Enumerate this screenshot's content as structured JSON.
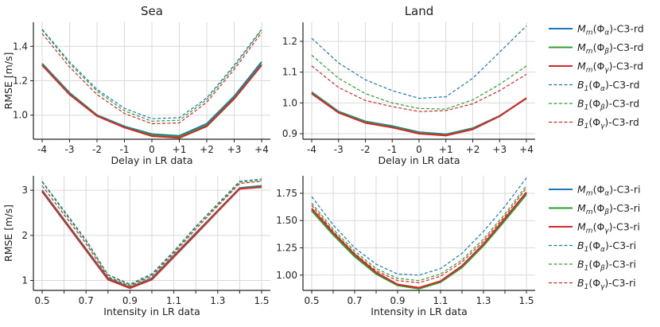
{
  "chart_data": [
    {
      "type": "line",
      "title": "Sea",
      "xlabel": "Delay in LR data",
      "ylabel": "RMSE [m/s]",
      "categories": [
        "-4",
        "-3",
        "-2",
        "-1",
        "0",
        "+1",
        "+2",
        "+3",
        "+4"
      ],
      "ylim": [
        0.86,
        1.54
      ],
      "yticks": [
        1.0,
        1.2,
        1.4
      ],
      "ytick_labels": [
        "1.0",
        "1.2",
        "1.4"
      ],
      "series": [
        {
          "name": "Mm(Φα)-C3-rd",
          "color": "#1f77b4",
          "dash": false,
          "values": [
            1.3,
            1.13,
            1.0,
            0.935,
            0.89,
            0.88,
            0.95,
            1.11,
            1.31
          ]
        },
        {
          "name": "Mm(Φβ)-C3-rd",
          "color": "#2ca02c",
          "dash": false,
          "values": [
            1.295,
            1.125,
            0.998,
            0.93,
            0.885,
            0.875,
            0.94,
            1.1,
            1.295
          ]
        },
        {
          "name": "Mm(Φγ)-C3-rd",
          "color": "#d62728",
          "dash": false,
          "values": [
            1.29,
            1.12,
            0.995,
            0.928,
            0.878,
            0.868,
            0.935,
            1.095,
            1.29
          ]
        },
        {
          "name": "B1(Φα)-C3-rd",
          "color": "#1f77b4",
          "dash": true,
          "values": [
            1.5,
            1.31,
            1.15,
            1.04,
            0.98,
            0.985,
            1.1,
            1.29,
            1.5
          ]
        },
        {
          "name": "B1(Φβ)-C3-rd",
          "color": "#2ca02c",
          "dash": true,
          "values": [
            1.495,
            1.3,
            1.14,
            1.025,
            0.965,
            0.97,
            1.09,
            1.28,
            1.495
          ]
        },
        {
          "name": "B1(Φγ)-C3-rd",
          "color": "#d62728",
          "dash": true,
          "values": [
            1.475,
            1.28,
            1.12,
            1.01,
            0.95,
            0.955,
            1.075,
            1.265,
            1.48
          ]
        }
      ]
    },
    {
      "type": "line",
      "title": "Land",
      "xlabel": "Delay in LR data",
      "ylabel": "",
      "categories": [
        "-4",
        "-3",
        "-2",
        "-1",
        "0",
        "+1",
        "+2",
        "+3",
        "+4"
      ],
      "ylim": [
        0.882,
        1.262
      ],
      "yticks": [
        0.9,
        1.0,
        1.1,
        1.2
      ],
      "ytick_labels": [
        "0.9",
        "1.0",
        "1.1",
        "1.2"
      ],
      "series": [
        {
          "name": "Mm(Φα)-C3-rd",
          "color": "#1f77b4",
          "dash": false,
          "values": [
            1.035,
            0.972,
            0.94,
            0.925,
            0.905,
            0.898,
            0.918,
            0.958,
            1.015
          ]
        },
        {
          "name": "Mm(Φβ)-C3-rd",
          "color": "#2ca02c",
          "dash": false,
          "values": [
            1.033,
            0.97,
            0.938,
            0.922,
            0.903,
            0.896,
            0.916,
            0.957,
            1.015
          ]
        },
        {
          "name": "Mm(Φγ)-C3-rd",
          "color": "#d62728",
          "dash": false,
          "values": [
            1.03,
            0.968,
            0.935,
            0.92,
            0.9,
            0.894,
            0.914,
            0.957,
            1.016
          ]
        },
        {
          "name": "B1(Φα)-C3-rd",
          "color": "#1f77b4",
          "dash": true,
          "values": [
            1.21,
            1.13,
            1.075,
            1.04,
            1.015,
            1.02,
            1.08,
            1.165,
            1.25
          ]
        },
        {
          "name": "B1(Φβ)-C3-rd",
          "color": "#2ca02c",
          "dash": true,
          "values": [
            1.155,
            1.08,
            1.03,
            1.0,
            0.982,
            0.98,
            1.01,
            1.06,
            1.12
          ]
        },
        {
          "name": "B1(Φγ)-C3-rd",
          "color": "#d62728",
          "dash": true,
          "values": [
            1.12,
            1.05,
            1.008,
            0.988,
            0.972,
            0.975,
            0.997,
            1.04,
            1.093
          ]
        }
      ]
    },
    {
      "type": "line",
      "title": "",
      "xlabel": "Intensity in LR data",
      "ylabel": "RMSE [m/s]",
      "categories": [
        "0.5",
        "0.6",
        "0.7",
        "0.8",
        "0.9",
        "1.0",
        "1.1",
        "1.2",
        "1.3",
        "1.4",
        "1.5"
      ],
      "xtick_labels": [
        "0.5",
        "",
        "0.7",
        "",
        "0.9",
        "",
        "1.1",
        "",
        "1.3",
        "",
        "1.5"
      ],
      "ylim": [
        0.78,
        3.32
      ],
      "yticks": [
        1,
        2,
        3
      ],
      "ytick_labels": [
        "1",
        "2",
        "3"
      ],
      "series": [
        {
          "name": "Mm(Φα)-C3-ri",
          "color": "#1f77b4",
          "dash": false,
          "values": [
            3.0,
            2.35,
            1.7,
            1.05,
            0.85,
            1.05,
            1.55,
            2.05,
            2.55,
            3.05,
            3.1
          ]
        },
        {
          "name": "Mm(Φβ)-C3-ri",
          "color": "#2ca02c",
          "dash": false,
          "values": [
            2.98,
            2.33,
            1.68,
            1.03,
            0.84,
            1.03,
            1.53,
            2.03,
            2.54,
            3.04,
            3.08
          ]
        },
        {
          "name": "Mm(Φγ)-C3-ri",
          "color": "#d62728",
          "dash": false,
          "values": [
            2.97,
            2.32,
            1.67,
            1.02,
            0.83,
            1.02,
            1.52,
            2.02,
            2.53,
            3.03,
            3.07
          ]
        },
        {
          "name": "B1(Φα)-C3-ri",
          "color": "#1f77b4",
          "dash": true,
          "values": [
            3.2,
            2.55,
            1.9,
            1.13,
            0.92,
            1.15,
            1.65,
            2.2,
            2.7,
            3.2,
            3.25
          ]
        },
        {
          "name": "B1(Φβ)-C3-ri",
          "color": "#2ca02c",
          "dash": true,
          "values": [
            3.18,
            2.52,
            1.87,
            1.12,
            0.9,
            1.13,
            1.63,
            2.18,
            2.68,
            3.18,
            3.22
          ]
        },
        {
          "name": "B1(Φγ)-C3-ri",
          "color": "#d62728",
          "dash": true,
          "values": [
            3.1,
            2.46,
            1.82,
            1.08,
            0.88,
            1.1,
            1.6,
            2.14,
            2.65,
            3.15,
            3.2
          ]
        }
      ]
    },
    {
      "type": "line",
      "title": "",
      "xlabel": "Intensity in LR data",
      "ylabel": "",
      "categories": [
        "0.5",
        "0.6",
        "0.7",
        "0.8",
        "0.9",
        "1.0",
        "1.1",
        "1.2",
        "1.3",
        "1.4",
        "1.5"
      ],
      "xtick_labels": [
        "0.5",
        "",
        "0.7",
        "",
        "0.9",
        "",
        "1.1",
        "",
        "1.3",
        "",
        "1.5"
      ],
      "ylim": [
        0.86,
        1.91
      ],
      "yticks": [
        1.0,
        1.25,
        1.5,
        1.75
      ],
      "ytick_labels": [
        "1.00",
        "1.25",
        "1.50",
        "1.75"
      ],
      "series": [
        {
          "name": "Mm(Φα)-C3-ri",
          "color": "#1f77b4",
          "dash": false,
          "values": [
            1.6,
            1.38,
            1.18,
            1.02,
            0.91,
            0.88,
            0.94,
            1.08,
            1.28,
            1.51,
            1.75
          ]
        },
        {
          "name": "Mm(Φβ)-C3-ri",
          "color": "#2ca02c",
          "dash": false,
          "values": [
            1.59,
            1.37,
            1.17,
            1.01,
            0.905,
            0.875,
            0.935,
            1.07,
            1.27,
            1.5,
            1.74
          ]
        },
        {
          "name": "Mm(Φγ)-C3-ri",
          "color": "#d62728",
          "dash": false,
          "values": [
            1.61,
            1.39,
            1.19,
            1.025,
            0.915,
            0.885,
            0.945,
            1.085,
            1.285,
            1.52,
            1.76
          ]
        },
        {
          "name": "B1(Φα)-C3-ri",
          "color": "#1f77b4",
          "dash": true,
          "values": [
            1.72,
            1.46,
            1.25,
            1.1,
            1.01,
            1.0,
            1.06,
            1.2,
            1.4,
            1.63,
            1.89
          ]
        },
        {
          "name": "B1(Φβ)-C3-ri",
          "color": "#2ca02c",
          "dash": true,
          "values": [
            1.66,
            1.42,
            1.22,
            1.06,
            0.97,
            0.95,
            1.01,
            1.14,
            1.33,
            1.56,
            1.82
          ]
        },
        {
          "name": "B1(Φγ)-C3-ri",
          "color": "#d62728",
          "dash": true,
          "values": [
            1.64,
            1.4,
            1.2,
            1.04,
            0.95,
            0.93,
            0.99,
            1.12,
            1.31,
            1.54,
            1.8
          ]
        }
      ]
    }
  ],
  "legends": [
    {
      "entries": [
        {
          "base": "M",
          "sub": "m",
          "phi": "α",
          "suffix": ")-C3-rd",
          "color": "#1f77b4",
          "dash": false
        },
        {
          "base": "M",
          "sub": "m",
          "phi": "β",
          "suffix": ")-C3-rd",
          "color": "#2ca02c",
          "dash": false
        },
        {
          "base": "M",
          "sub": "m",
          "phi": "γ",
          "suffix": ")-C3-rd",
          "color": "#d62728",
          "dash": false
        },
        {
          "base": "B",
          "sub": "1",
          "phi": "α",
          "suffix": ")-C3-rd",
          "color": "#1f77b4",
          "dash": true
        },
        {
          "base": "B",
          "sub": "1",
          "phi": "β",
          "suffix": ")-C3-rd",
          "color": "#2ca02c",
          "dash": true
        },
        {
          "base": "B",
          "sub": "1",
          "phi": "γ",
          "suffix": ")-C3-rd",
          "color": "#d62728",
          "dash": true
        }
      ]
    },
    {
      "entries": [
        {
          "base": "M",
          "sub": "m",
          "phi": "α",
          "suffix": ")-C3-ri",
          "color": "#1f77b4",
          "dash": false
        },
        {
          "base": "M",
          "sub": "m",
          "phi": "β",
          "suffix": ")-C3-ri",
          "color": "#2ca02c",
          "dash": false
        },
        {
          "base": "M",
          "sub": "m",
          "phi": "γ",
          "suffix": ")-C3-ri",
          "color": "#d62728",
          "dash": false
        },
        {
          "base": "B",
          "sub": "1",
          "phi": "α",
          "suffix": ")-C3-ri",
          "color": "#1f77b4",
          "dash": true
        },
        {
          "base": "B",
          "sub": "1",
          "phi": "β",
          "suffix": ")-C3-ri",
          "color": "#2ca02c",
          "dash": true
        },
        {
          "base": "B",
          "sub": "1",
          "phi": "γ",
          "suffix": ")-C3-ri",
          "color": "#d62728",
          "dash": true
        }
      ]
    }
  ]
}
